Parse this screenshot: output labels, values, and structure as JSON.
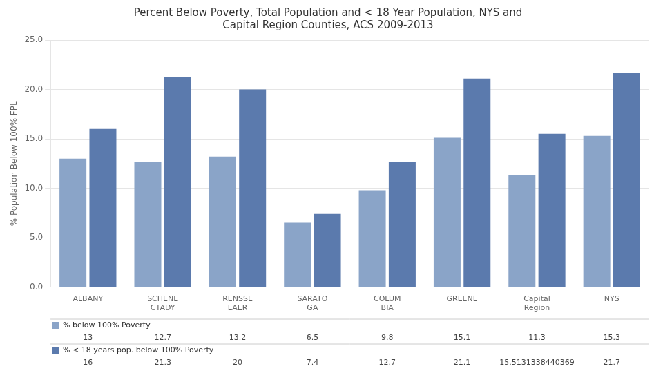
{
  "chart_data": {
    "type": "bar",
    "title": "Percent Below Poverty, Total Population and < 18 Year Population, NYS and\nCapital Region Counties, ACS 2009-2013",
    "y_label": "% Population Below 100% FPL",
    "categories": [
      "ALBANY",
      "SCHENE\nCTADY",
      "RENSSE\nLAER",
      "SARATO\nGA",
      "COLUM\nBIA",
      "GREENE",
      "Capital\nRegion",
      "NYS"
    ],
    "series": [
      {
        "name": "% below 100% Poverty",
        "color": "#8aa4c8",
        "values": [
          13,
          12.7,
          13.2,
          6.5,
          9.8,
          15.1,
          11.3,
          15.3
        ]
      },
      {
        "name": "% < 18 years pop. below 100% Poverty",
        "color": "#5b7aad",
        "values": [
          16,
          21.3,
          20,
          7.4,
          12.7,
          21.1,
          15.5131338440369,
          21.7
        ]
      }
    ],
    "ylim": [
      0,
      25
    ],
    "yticks": [
      {
        "value": 0,
        "label": "0.0"
      },
      {
        "value": 5,
        "label": "5.0"
      },
      {
        "value": 10,
        "label": "10.0"
      },
      {
        "value": 15,
        "label": "15.0"
      },
      {
        "value": 20,
        "label": "20.0"
      },
      {
        "value": 25,
        "label": "25.0"
      }
    ],
    "grid": true,
    "data_labels": true
  }
}
